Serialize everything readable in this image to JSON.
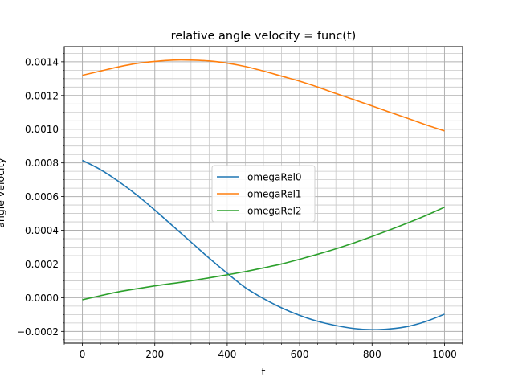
{
  "chart_data": {
    "type": "line",
    "title": "relative angle velocity = func(t)",
    "xlabel": "t",
    "ylabel": "angle velocity",
    "xlim": [
      -50,
      1050
    ],
    "ylim": [
      -0.00027,
      0.00149
    ],
    "x_major_ticks": [
      0,
      200,
      400,
      600,
      800,
      1000
    ],
    "x_tick_labels": [
      "0",
      "200",
      "400",
      "600",
      "800",
      "1000"
    ],
    "y_major_ticks": [
      -0.0002,
      0.0,
      0.0002,
      0.0004,
      0.0006,
      0.0008,
      0.001,
      0.0012,
      0.0014
    ],
    "y_tick_labels": [
      "−0.0002",
      "0.0000",
      "0.0002",
      "0.0004",
      "0.0006",
      "0.0008",
      "0.0010",
      "0.0012",
      "0.0014"
    ],
    "x_minor_step": 50,
    "y_minor_step": 5e-05,
    "grid": true,
    "legend": "center",
    "x": [
      0,
      50,
      100,
      150,
      200,
      250,
      300,
      350,
      400,
      450,
      500,
      550,
      600,
      650,
      700,
      750,
      800,
      850,
      900,
      950,
      1000
    ],
    "series": [
      {
        "name": "omegaRel0",
        "color": "#1f77b4",
        "values": [
          0.000815,
          0.00076,
          0.00069,
          0.00061,
          0.00052,
          0.000425,
          0.00033,
          0.000235,
          0.000145,
          6e-05,
          -5e-06,
          -6e-05,
          -0.000105,
          -0.00014,
          -0.000165,
          -0.000183,
          -0.00019,
          -0.000185,
          -0.00017,
          -0.00014,
          -9.8e-05
        ]
      },
      {
        "name": "omegaRel1",
        "color": "#ff7f0e",
        "values": [
          0.00132,
          0.001345,
          0.00137,
          0.00139,
          0.001402,
          0.00141,
          0.00141,
          0.001405,
          0.001392,
          0.001372,
          0.001345,
          0.001315,
          0.001285,
          0.00125,
          0.001212,
          0.001175,
          0.001138,
          0.0011,
          0.001063,
          0.001025,
          0.00099
        ]
      },
      {
        "name": "omegaRel2",
        "color": "#2ca02c",
        "values": [
          -1.2e-05,
          1.2e-05,
          3.5e-05,
          5.3e-05,
          7e-05,
          8.5e-05,
          0.0001,
          0.000118,
          0.000136,
          0.000155,
          0.000177,
          0.0002,
          0.000228,
          0.000258,
          0.00029,
          0.000325,
          0.000363,
          0.000403,
          0.000445,
          0.000489,
          0.000537
        ]
      }
    ]
  }
}
